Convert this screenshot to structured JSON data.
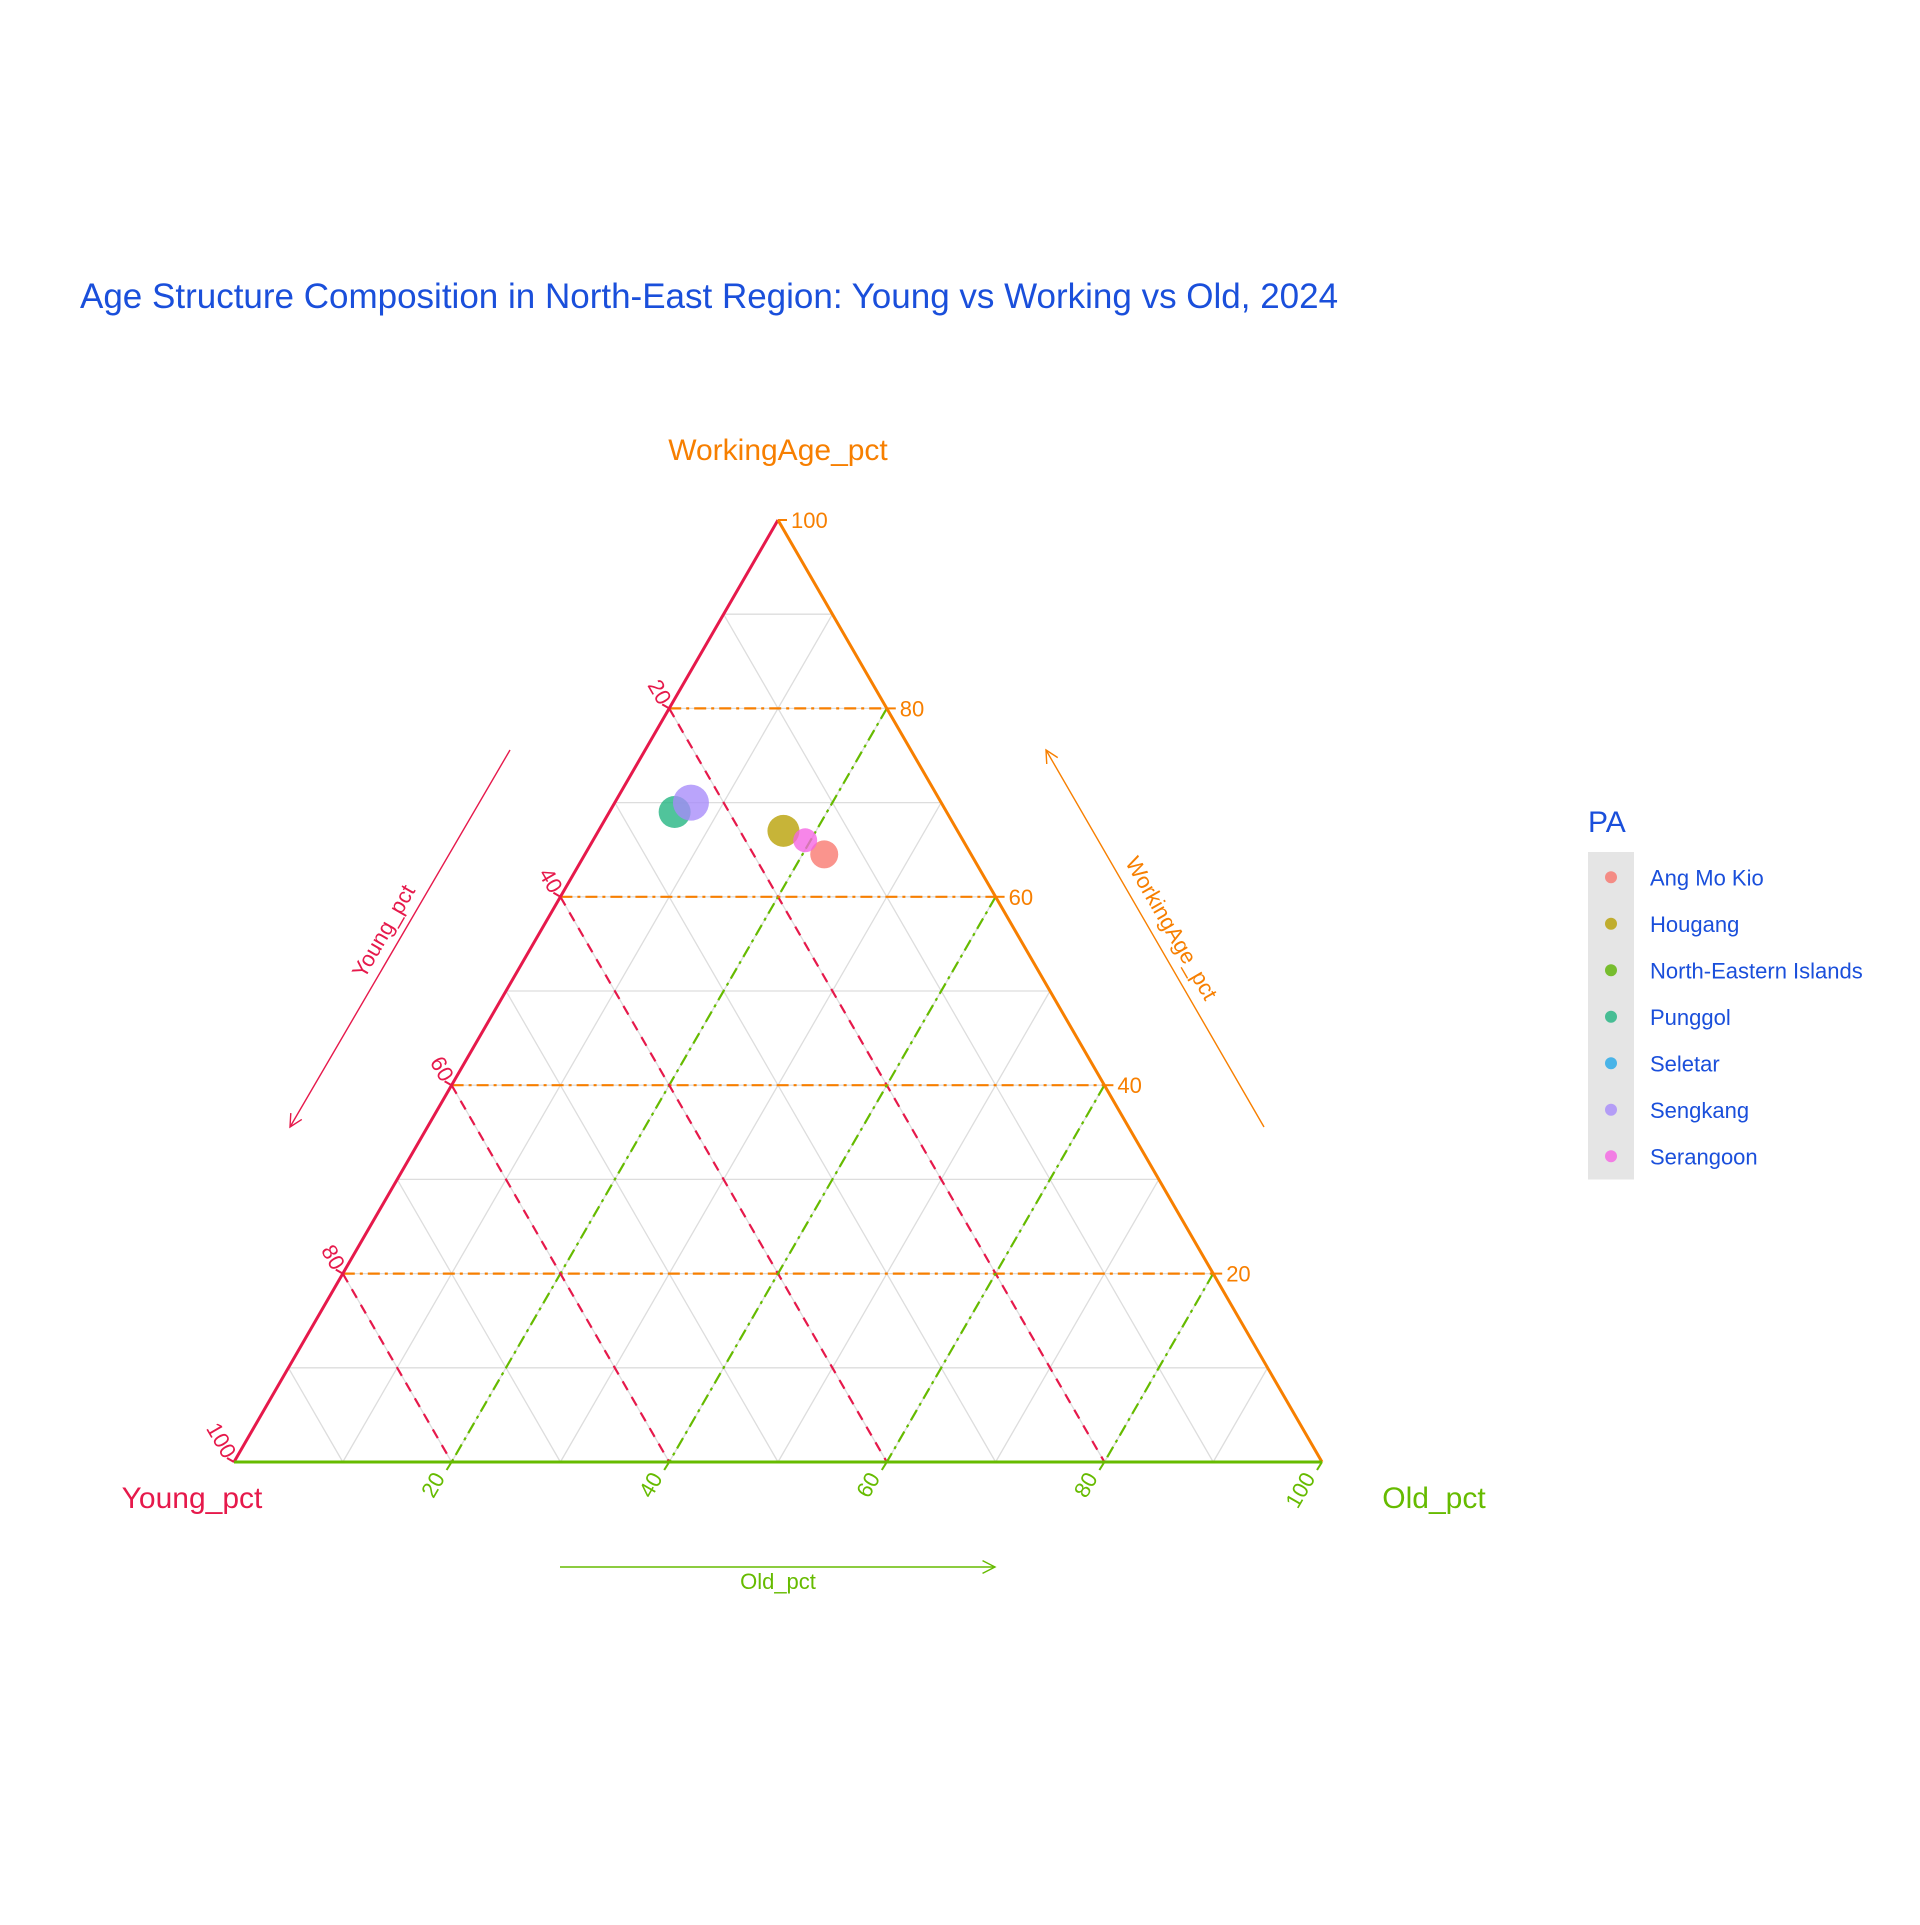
{
  "chart_data": {
    "type": "scatter",
    "subtype": "ternary",
    "title": "Age Structure Composition in North-East Region: Young vs Working vs Old, 2024",
    "axes": {
      "left": {
        "label": "Young_pct",
        "color": "#E6194B"
      },
      "top": {
        "label": "WorkingAge_pct",
        "color": "#F77F00"
      },
      "right": {
        "label": "Old_pct",
        "color": "#66BB00"
      }
    },
    "range": [
      0,
      100
    ],
    "ticks": [
      20,
      40,
      60,
      80,
      100
    ],
    "grid": true,
    "grid_step": 10,
    "reference_lines": [
      20,
      40,
      60,
      80
    ],
    "legend": {
      "title": "PA",
      "position": "right",
      "entries": [
        {
          "name": "Ang Mo Kio",
          "color": "#F8766D"
        },
        {
          "name": "Hougang",
          "color": "#B79F00"
        },
        {
          "name": "North-Eastern Islands",
          "color": "#5BB300"
        },
        {
          "name": "Punggol",
          "color": "#1FB37F"
        },
        {
          "name": "Seletar",
          "color": "#22A7E8"
        },
        {
          "name": "Sengkang",
          "color": "#A78BFA"
        },
        {
          "name": "Serangoon",
          "color": "#F564E3"
        }
      ]
    },
    "points": [
      {
        "name": "Ang Mo Kio",
        "young": 13.5,
        "working": 64.5,
        "old": 22.0,
        "size": 24,
        "color": "#F8766D"
      },
      {
        "name": "Hougang",
        "young": 16.0,
        "working": 67.0,
        "old": 17.0,
        "size": 28,
        "color": "#B79F00"
      },
      {
        "name": "Punggol",
        "young": 25.0,
        "working": 69.0,
        "old": 6.0,
        "size": 28,
        "color": "#1FB37F"
      },
      {
        "name": "Sengkang",
        "young": 23.0,
        "working": 70.0,
        "old": 7.0,
        "size": 32,
        "color": "#A78BFA"
      },
      {
        "name": "Serangoon",
        "young": 14.5,
        "working": 66.0,
        "old": 19.5,
        "size": 20,
        "color": "#F564E3"
      }
    ]
  },
  "colors": {
    "title": "#1A4FDB",
    "legend_text": "#1A4FDB",
    "legend_key_bg": "#E5E5E5",
    "grid": "#DDDDDD"
  }
}
